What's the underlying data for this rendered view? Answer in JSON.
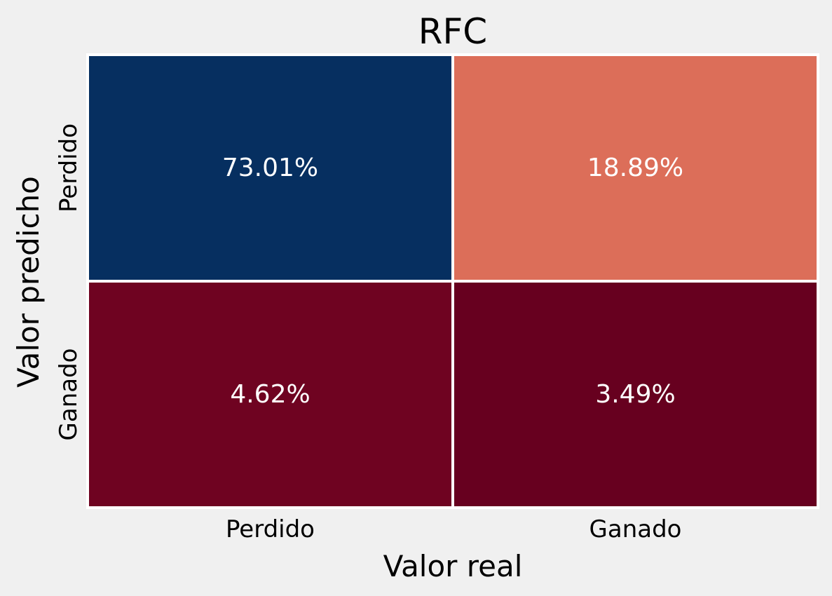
{
  "chart_data": {
    "type": "heatmap",
    "title": "RFC",
    "xlabel": "Valor real",
    "ylabel": "Valor predicho",
    "x_categories": [
      "Perdido",
      "Ganado"
    ],
    "y_categories": [
      "Perdido",
      "Ganado"
    ],
    "values": [
      [
        73.01,
        18.89
      ],
      [
        4.62,
        3.49
      ]
    ],
    "cell_labels": [
      [
        "73.01%",
        "18.89%"
      ],
      [
        "4.62%",
        "3.49%"
      ]
    ],
    "cell_colors": [
      [
        "#062f60",
        "#dc6e59"
      ],
      [
        "#6f0321",
        "#67001f"
      ]
    ],
    "grid_line_color": "#ffffff",
    "colormap": "RdBu"
  }
}
